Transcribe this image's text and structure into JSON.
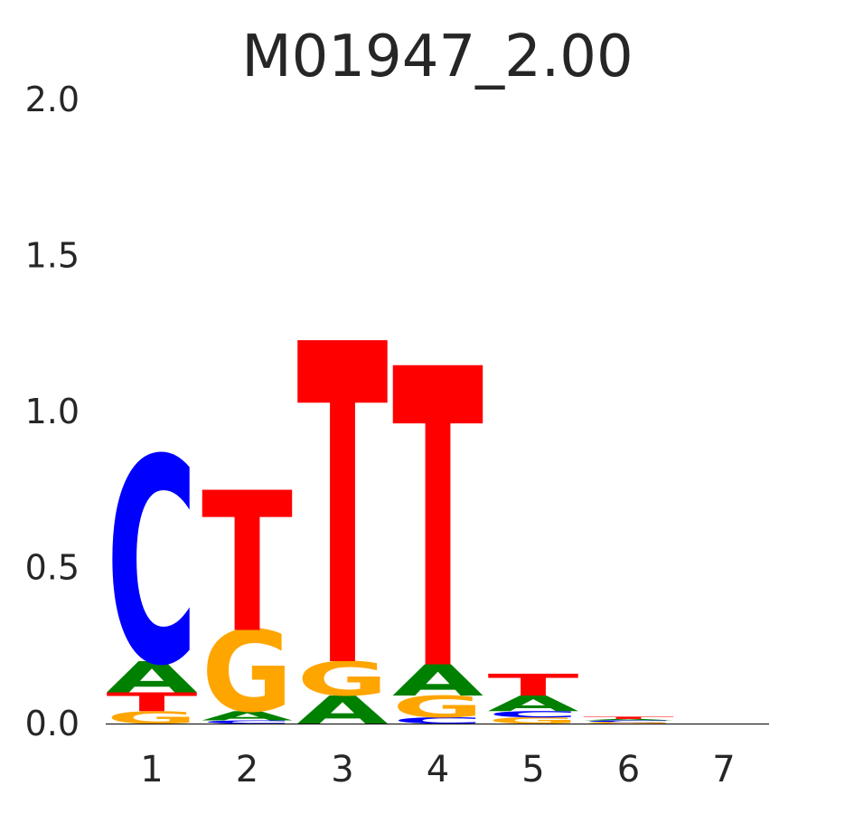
{
  "chart_data": {
    "type": "sequence-logo",
    "title": "M01947_2.00",
    "ylim": [
      0,
      2
    ],
    "yticks": [
      "0.0",
      "0.5",
      "1.0",
      "1.5",
      "2.0"
    ],
    "ytick_values": [
      0,
      0.5,
      1.0,
      1.5,
      2.0
    ],
    "categories": [
      "1",
      "2",
      "3",
      "4",
      "5",
      "6",
      "7"
    ],
    "grid": false,
    "colors": {
      "A": "#008000",
      "C": "#0000ff",
      "G": "#ffa500",
      "T": "#ff0000"
    },
    "positions": [
      {
        "pos": "1",
        "stack": [
          {
            "base": "G",
            "height": 0.04
          },
          {
            "base": "T",
            "height": 0.06
          },
          {
            "base": "A",
            "height": 0.1
          },
          {
            "base": "C",
            "height": 0.66
          }
        ]
      },
      {
        "pos": "2",
        "stack": [
          {
            "base": "C",
            "height": 0.01
          },
          {
            "base": "A",
            "height": 0.03
          },
          {
            "base": "G",
            "height": 0.26
          },
          {
            "base": "T",
            "height": 0.45
          }
        ]
      },
      {
        "pos": "3",
        "stack": [
          {
            "base": "A",
            "height": 0.09
          },
          {
            "base": "G",
            "height": 0.11
          },
          {
            "base": "T",
            "height": 1.03
          }
        ]
      },
      {
        "pos": "4",
        "stack": [
          {
            "base": "C",
            "height": 0.02
          },
          {
            "base": "G",
            "height": 0.07
          },
          {
            "base": "A",
            "height": 0.1
          },
          {
            "base": "T",
            "height": 0.96
          }
        ]
      },
      {
        "pos": "5",
        "stack": [
          {
            "base": "G",
            "height": 0.02
          },
          {
            "base": "C",
            "height": 0.02
          },
          {
            "base": "A",
            "height": 0.05
          },
          {
            "base": "T",
            "height": 0.07
          }
        ]
      },
      {
        "pos": "6",
        "stack": [
          {
            "base": "G",
            "height": 0.005
          },
          {
            "base": "C",
            "height": 0.005
          },
          {
            "base": "A",
            "height": 0.005
          },
          {
            "base": "T",
            "height": 0.007
          }
        ]
      },
      {
        "pos": "7",
        "stack": []
      }
    ]
  }
}
